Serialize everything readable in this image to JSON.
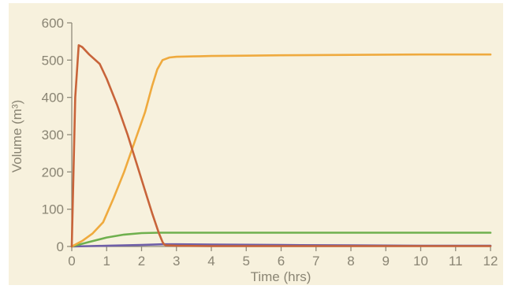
{
  "chart_data": {
    "type": "line",
    "title": "",
    "xlabel": "Time (hrs)",
    "ylabel": "Volume (m³)",
    "xlim": [
      0,
      12
    ],
    "ylim": [
      0,
      600
    ],
    "x_ticks": [
      0,
      1,
      2,
      3,
      4,
      5,
      6,
      7,
      8,
      9,
      10,
      11,
      12
    ],
    "y_ticks": [
      0,
      100,
      200,
      300,
      400,
      500,
      600
    ],
    "grid": false,
    "legend": "none",
    "series": [
      {
        "color": "#c8643a",
        "x": [
          0,
          0.1,
          0.2,
          0.3,
          0.5,
          0.8,
          1.0,
          1.3,
          1.6,
          1.9,
          2.1,
          2.3,
          2.5,
          2.6,
          2.65,
          2.7,
          3.0,
          4.0,
          6.0,
          8.0,
          10.0,
          12.0
        ],
        "y": [
          0,
          400,
          540,
          535,
          515,
          490,
          450,
          380,
          300,
          210,
          150,
          90,
          35,
          12,
          5,
          3,
          2,
          1,
          1,
          1,
          1,
          1
        ]
      },
      {
        "color": "#efaa3e",
        "x": [
          0,
          0.3,
          0.6,
          0.9,
          1.2,
          1.5,
          1.8,
          2.1,
          2.3,
          2.45,
          2.6,
          2.8,
          3.0,
          3.5,
          4.0,
          5.0,
          6.0,
          8.0,
          10.0,
          12.0
        ],
        "y": [
          0,
          15,
          35,
          65,
          130,
          200,
          280,
          360,
          430,
          475,
          500,
          507,
          509,
          510,
          511,
          512,
          513,
          514,
          515,
          515
        ]
      },
      {
        "color": "#6fb04e",
        "x": [
          0,
          0.5,
          1.0,
          1.5,
          2.0,
          2.5,
          3.0,
          4.0,
          5.0,
          6.0,
          8.0,
          10.0,
          12.0
        ],
        "y": [
          0,
          12,
          24,
          32,
          36,
          37,
          37,
          37,
          37,
          37,
          37,
          37,
          37
        ]
      },
      {
        "color": "#6f5fa8",
        "x": [
          0,
          0.5,
          1.0,
          2.0,
          2.6,
          3.0,
          4.0,
          6.0,
          8.0,
          10.0,
          12.0
        ],
        "y": [
          0,
          1,
          2,
          4,
          6,
          6,
          5,
          4,
          3,
          2,
          2
        ]
      }
    ]
  }
}
